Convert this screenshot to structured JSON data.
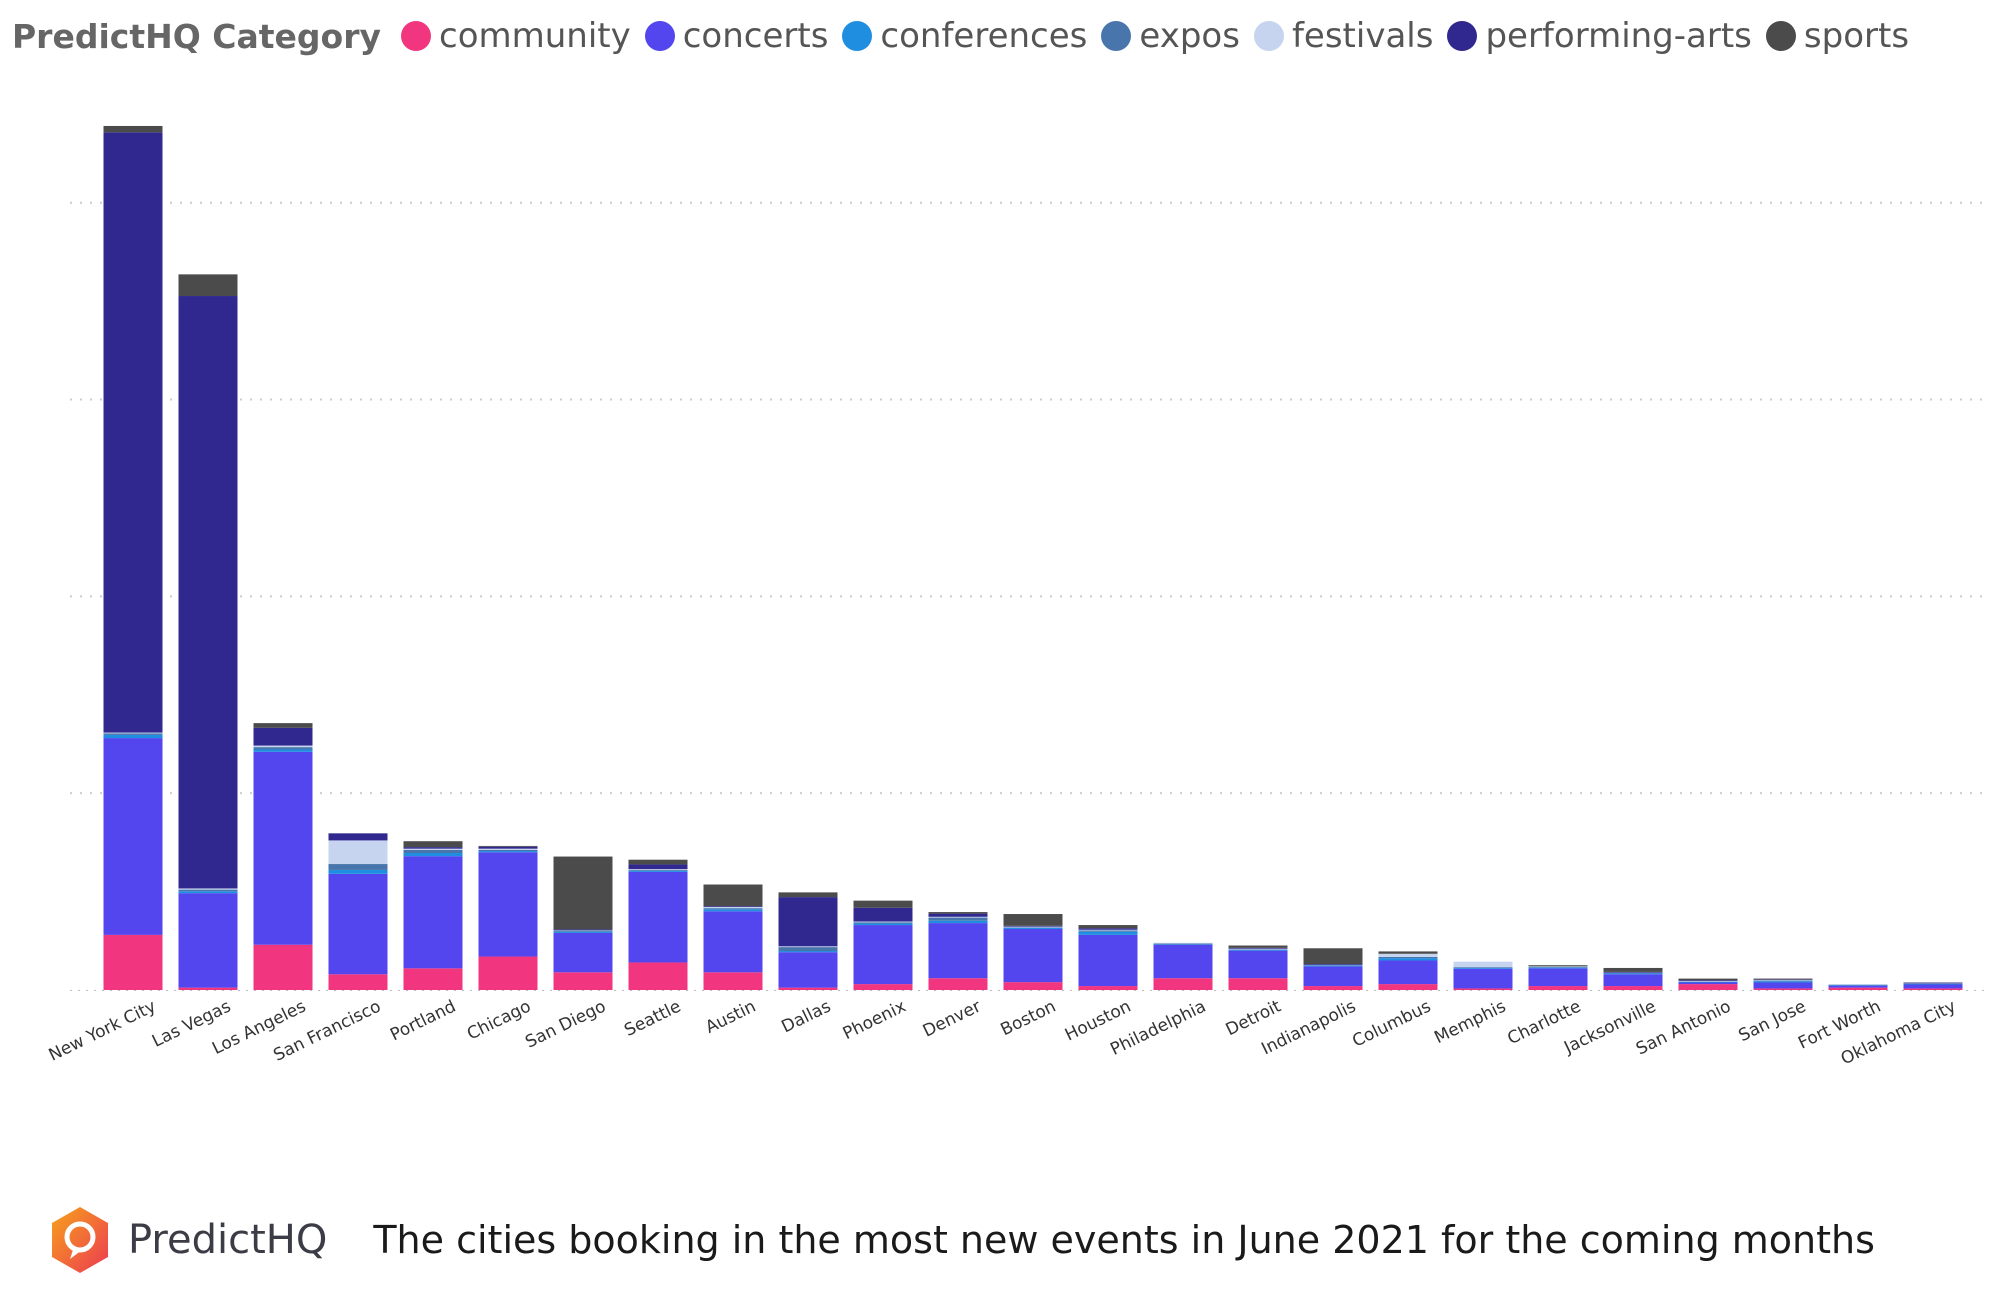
{
  "chart_data": {
    "type": "bar",
    "stacked": true,
    "legend": {
      "title": "PredictHQ Category",
      "placement": "top-left"
    },
    "categories": [
      "New York City",
      "Las Vegas",
      "Los Angeles",
      "San Francisco",
      "Portland",
      "Chicago",
      "San Diego",
      "Seattle",
      "Austin",
      "Dallas",
      "Phoenix",
      "Denver",
      "Boston",
      "Houston",
      "Philadelphia",
      "Detroit",
      "Indianapolis",
      "Columbus",
      "Memphis",
      "Charlotte",
      "Jacksonville",
      "San Antonio",
      "San Jose",
      "Fort Worth",
      "Oklahoma City"
    ],
    "ylim": [
      0,
      2200
    ],
    "grid": true,
    "yaxis_labels": false,
    "series": [
      {
        "name": "community",
        "color": "#f2357f",
        "values": [
          140,
          6,
          115,
          40,
          55,
          85,
          45,
          70,
          45,
          6,
          15,
          30,
          20,
          10,
          30,
          30,
          10,
          15,
          4,
          10,
          10,
          15,
          4,
          6,
          4
        ]
      },
      {
        "name": "concerts",
        "color": "#5346ef",
        "values": [
          500,
          240,
          490,
          255,
          285,
          265,
          100,
          230,
          155,
          90,
          150,
          140,
          135,
          130,
          85,
          70,
          50,
          60,
          50,
          45,
          30,
          5,
          15,
          5,
          10
        ]
      },
      {
        "name": "conferences",
        "color": "#1f8ee0",
        "values": [
          8,
          5,
          6,
          10,
          8,
          3,
          3,
          3,
          5,
          3,
          4,
          6,
          3,
          8,
          2,
          2,
          2,
          6,
          2,
          2,
          2,
          1,
          3,
          2,
          2
        ]
      },
      {
        "name": "expos",
        "color": "#4876ac",
        "values": [
          4,
          4,
          6,
          15,
          8,
          3,
          3,
          2,
          3,
          10,
          3,
          8,
          2,
          4,
          1,
          2,
          2,
          3,
          2,
          2,
          2,
          1,
          2,
          1,
          1
        ]
      },
      {
        "name": "festivals",
        "color": "#c7d4ef",
        "values": [
          2,
          3,
          4,
          60,
          3,
          3,
          2,
          2,
          3,
          2,
          2,
          2,
          1,
          1,
          2,
          1,
          1,
          8,
          14,
          1,
          1,
          1,
          2,
          1,
          1
        ]
      },
      {
        "name": "performing-arts",
        "color": "#30288f",
        "values": [
          1525,
          1505,
          45,
          18,
          4,
          5,
          1,
          12,
          2,
          125,
          35,
          8,
          2,
          4,
          0,
          2,
          1,
          0,
          0,
          0,
          1,
          2,
          2,
          0,
          1
        ]
      },
      {
        "name": "sports",
        "color": "#4b4b4b",
        "values": [
          16,
          55,
          12,
          0,
          15,
          2,
          185,
          12,
          55,
          12,
          18,
          4,
          30,
          8,
          0,
          6,
          40,
          6,
          0,
          3,
          10,
          4,
          1,
          0,
          0
        ]
      }
    ]
  },
  "footer": {
    "brand": "PredictHQ",
    "caption": "The cities booking in the most new events in June 2021 for the coming months"
  },
  "colors": {
    "grid": "#cccccc",
    "axis": "#bbbbbb",
    "tick_label": "#333333",
    "logo_orange": "#f58220",
    "logo_red": "#ec3a52"
  }
}
